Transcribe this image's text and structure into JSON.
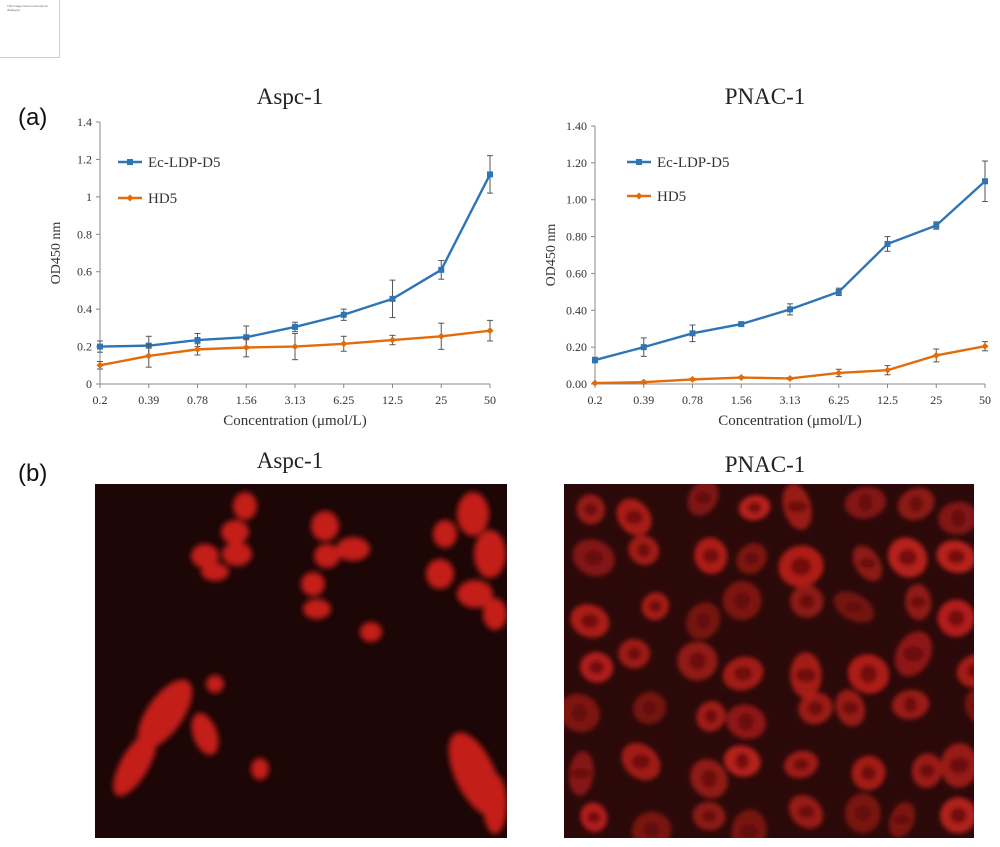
{
  "header_note": "This image cannot currently be displayed.",
  "panels": {
    "a": {
      "label": "(a)"
    },
    "b": {
      "label": "(b)"
    }
  },
  "chart_data": [
    {
      "type": "line",
      "title": "Aspc-1",
      "xlabel": "Concentration (μmol/L)",
      "ylabel": "OD450 nm",
      "categories": [
        "0.2",
        "0.39",
        "0.78",
        "1.56",
        "3.13",
        "6.25",
        "12.5",
        "25",
        "50"
      ],
      "ylim": [
        0,
        1.4
      ],
      "yticks": [
        "0",
        "0.2",
        "0.4",
        "0.6",
        "0.8",
        "1",
        "1.2",
        "1.4"
      ],
      "legend": "top-left",
      "series": [
        {
          "name": "Ec-LDP-D5",
          "color": "#2e75b6",
          "marker": "square",
          "values": [
            0.2,
            0.205,
            0.235,
            0.25,
            0.305,
            0.37,
            0.455,
            0.61,
            1.12
          ],
          "errors": [
            0.03,
            0.05,
            0.035,
            0.06,
            0.025,
            0.03,
            0.1,
            0.05,
            0.1
          ]
        },
        {
          "name": "HD5",
          "color": "#e36c0a",
          "marker": "diamond",
          "values": [
            0.1,
            0.15,
            0.185,
            0.195,
            0.2,
            0.215,
            0.235,
            0.255,
            0.285
          ],
          "errors": [
            0.02,
            0.06,
            0.03,
            0.05,
            0.07,
            0.04,
            0.025,
            0.07,
            0.055
          ]
        }
      ]
    },
    {
      "type": "line",
      "title": "PNAC-1",
      "xlabel": "Concentration (μmol/L)",
      "ylabel": "OD450 nm",
      "categories": [
        "0.2",
        "0.39",
        "0.78",
        "1.56",
        "3.13",
        "6.25",
        "12.5",
        "25",
        "50"
      ],
      "ylim": [
        0,
        1.4
      ],
      "yticks": [
        "0.00",
        "0.20",
        "0.40",
        "0.60",
        "0.80",
        "1.00",
        "1.20",
        "1.40"
      ],
      "legend": "top-left",
      "series": [
        {
          "name": "Ec-LDP-D5",
          "color": "#2e75b6",
          "marker": "square",
          "values": [
            0.13,
            0.2,
            0.275,
            0.325,
            0.405,
            0.5,
            0.76,
            0.86,
            1.1
          ],
          "errors": [
            0.015,
            0.05,
            0.045,
            0.01,
            0.03,
            0.02,
            0.04,
            0.02,
            0.11
          ]
        },
        {
          "name": "HD5",
          "color": "#e36c0a",
          "marker": "diamond",
          "values": [
            0.005,
            0.01,
            0.025,
            0.035,
            0.03,
            0.06,
            0.075,
            0.155,
            0.205
          ],
          "errors": [
            0.002,
            0.005,
            0.005,
            0.005,
            0.005,
            0.02,
            0.025,
            0.035,
            0.025
          ]
        }
      ]
    }
  ],
  "micrographs": [
    {
      "title": "Aspc-1",
      "background": "#1a0707"
    },
    {
      "title": "PNAC-1",
      "background": "#2a0808"
    }
  ]
}
